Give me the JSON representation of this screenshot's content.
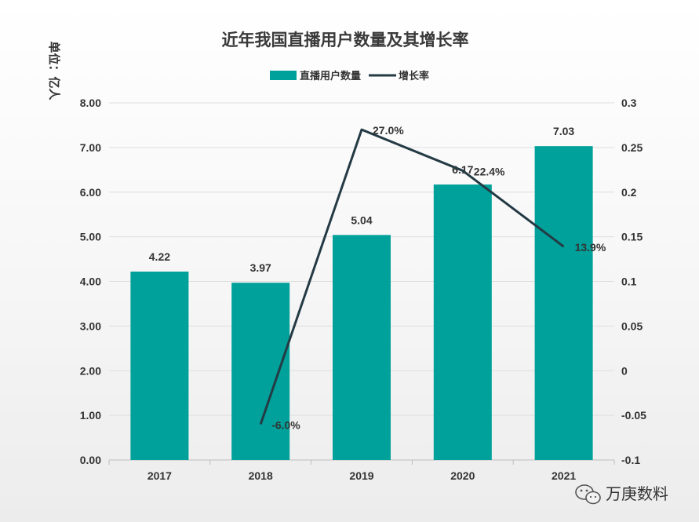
{
  "chart_data": {
    "type": "bar",
    "title": "近年我国直播用户数量及其增长率",
    "ylabel": "单位：亿人",
    "categories": [
      "2017",
      "2018",
      "2019",
      "2020",
      "2021"
    ],
    "ylim": [
      0,
      8
    ],
    "y_ticks": [
      "0.00",
      "1.00",
      "2.00",
      "3.00",
      "4.00",
      "5.00",
      "6.00",
      "7.00",
      "8.00"
    ],
    "y2lim": [
      -0.1,
      0.3
    ],
    "y2_ticks": [
      "-0.1",
      "-0.05",
      "0",
      "0.05",
      "0.1",
      "0.15",
      "0.2",
      "0.25",
      "0.3"
    ],
    "series": [
      {
        "name": "直播用户数量",
        "type": "bar",
        "color": "#00a19a",
        "values": [
          4.22,
          3.97,
          5.04,
          6.17,
          7.03
        ],
        "labels": [
          "4.22",
          "3.97",
          "5.04",
          "6.17",
          "7.03"
        ]
      },
      {
        "name": "增长率",
        "type": "line",
        "color": "#243a44",
        "axis": "right",
        "x": [
          "2018",
          "2019",
          "2020",
          "2021"
        ],
        "values": [
          -0.06,
          0.27,
          0.224,
          0.139
        ],
        "labels": [
          "-6.0%",
          "27.0%",
          "22.4%",
          "13.9%"
        ]
      }
    ],
    "legend_position": "top-center"
  },
  "watermark": {
    "text": "万庚数料",
    "icon": "wechat-icon"
  }
}
